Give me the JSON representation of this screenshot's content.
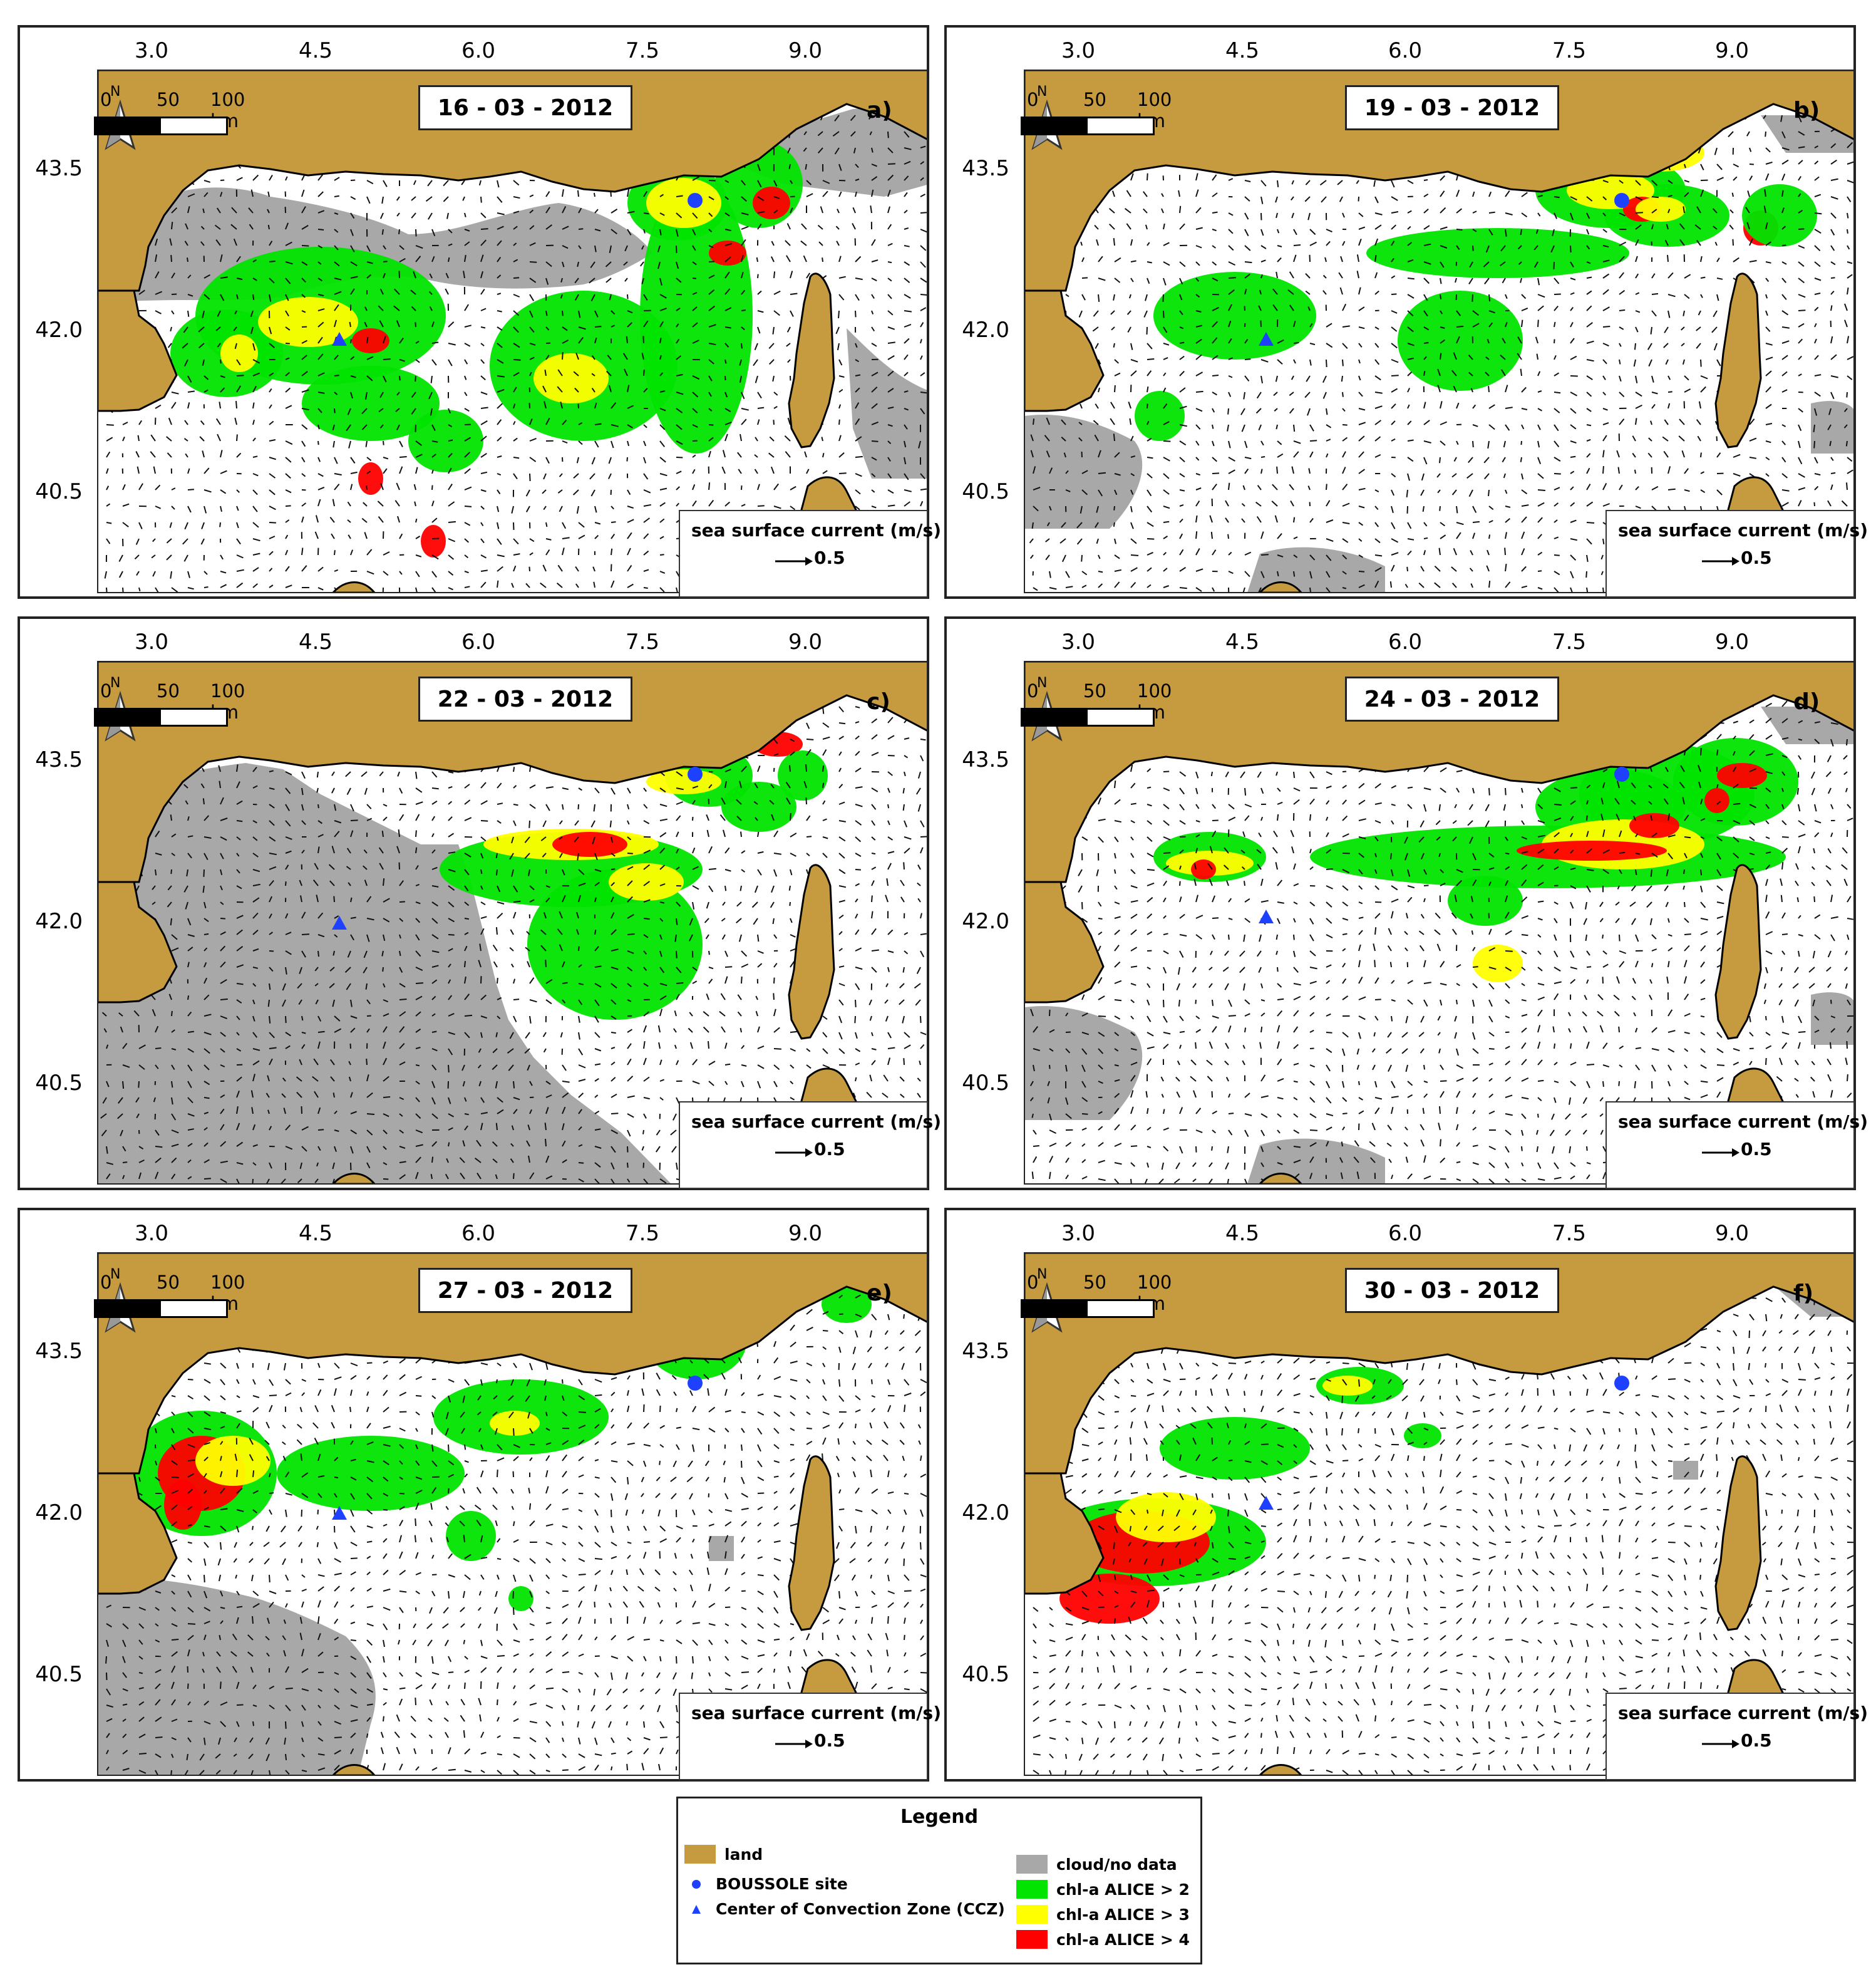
{
  "colors": {
    "land": "#C69A3E",
    "cloud": "#A8A8A8",
    "green": "#00E400",
    "yellow": "#FFFF00",
    "red": "#FF0000",
    "marker": "#1E40FF",
    "sea": "#FFFFFF"
  },
  "axes": {
    "x_ticks": [
      "3.0",
      "4.5",
      "6.0",
      "7.5",
      "9.0"
    ],
    "y_ticks": [
      "43.5",
      "42.0",
      "40.5"
    ]
  },
  "scale_bar": {
    "labels": [
      "0",
      "50",
      "100 km"
    ]
  },
  "north_arrow": {
    "label": "N",
    "icon": "north-arrow-icon"
  },
  "current_legend": {
    "title": "sea surface current (m/s)",
    "value": "0.5",
    "icon": "arrow-right-icon"
  },
  "panels": [
    {
      "date": "16 - 03 - 2012",
      "letter": "a)",
      "cloud": "heavy"
    },
    {
      "date": "19 - 03 - 2012",
      "letter": "b)",
      "cloud": "light"
    },
    {
      "date": "22 - 03 - 2012",
      "letter": "c)",
      "cloud": "west-covered"
    },
    {
      "date": "24 - 03 - 2012",
      "letter": "d)",
      "cloud": "light"
    },
    {
      "date": "27 - 03 - 2012",
      "letter": "e)",
      "cloud": "southwest"
    },
    {
      "date": "30 - 03 - 2012",
      "letter": "f)",
      "cloud": "minimal"
    }
  ],
  "legend": {
    "title": "Legend",
    "items": {
      "land": "land",
      "boussole": "BOUSSOLE site",
      "ccz": "Center of Convection Zone (CCZ)",
      "cloud": "cloud/no data",
      "chl2": "chl-a ALICE > 2",
      "chl3": "chl-a ALICE > 3",
      "chl4": "chl-a ALICE > 4"
    }
  }
}
